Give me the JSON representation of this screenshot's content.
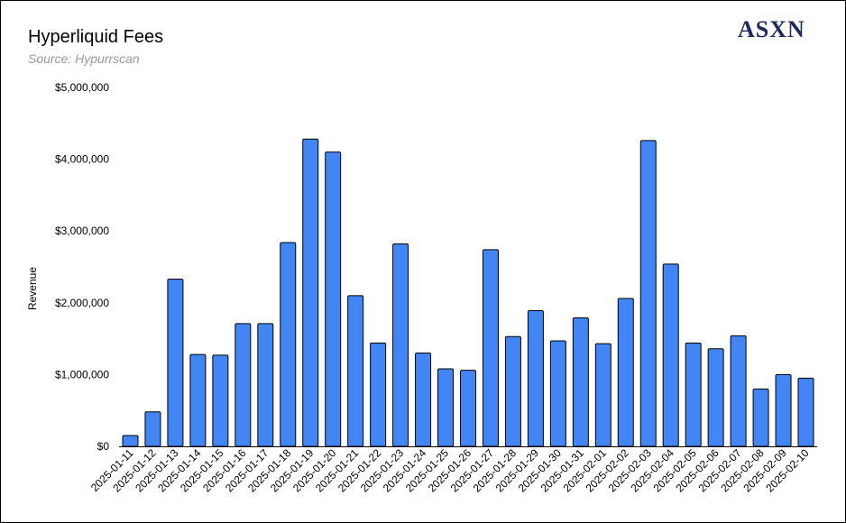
{
  "header": {
    "title": "Hyperliquid Fees",
    "subtitle": "Source: Hypurrscan",
    "logo_text": "ASXN"
  },
  "colors": {
    "bar_fill": "#4285f4",
    "bar_stroke": "#000000",
    "logo": "#1d2a5b",
    "subtitle": "#999999"
  },
  "chart_data": {
    "type": "bar",
    "title": "Hyperliquid Fees",
    "subtitle": "Source: Hypurrscan",
    "xlabel": "",
    "ylabel": "Revenue",
    "ylim": [
      0,
      5000000
    ],
    "yticks": [
      0,
      1000000,
      2000000,
      3000000,
      4000000,
      5000000
    ],
    "ytick_labels": [
      "$0",
      "$1,000,000",
      "$2,000,000",
      "$3,000,000",
      "$4,000,000",
      "$5,000,000"
    ],
    "grid": false,
    "categories": [
      "2025-01-11",
      "2025-01-12",
      "2025-01-13",
      "2025-01-14",
      "2025-01-15",
      "2025-01-16",
      "2025-01-17",
      "2025-01-18",
      "2025-01-19",
      "2025-01-20",
      "2025-01-21",
      "2025-01-22",
      "2025-01-23",
      "2025-01-24",
      "2025-01-25",
      "2025-01-26",
      "2025-01-27",
      "2025-01-28",
      "2025-01-29",
      "2025-01-30",
      "2025-01-31",
      "2025-02-01",
      "2025-02-02",
      "2025-02-03",
      "2025-02-04",
      "2025-02-05",
      "2025-02-06",
      "2025-02-07",
      "2025-02-08",
      "2025-02-09",
      "2025-02-10"
    ],
    "values": [
      150000,
      480000,
      2330000,
      1280000,
      1270000,
      1710000,
      1710000,
      2840000,
      4280000,
      4100000,
      2100000,
      1440000,
      2820000,
      1300000,
      1080000,
      1060000,
      2740000,
      1530000,
      1890000,
      1470000,
      1790000,
      1430000,
      2060000,
      4260000,
      2540000,
      1440000,
      1360000,
      1540000,
      800000,
      1000000,
      950000
    ]
  }
}
